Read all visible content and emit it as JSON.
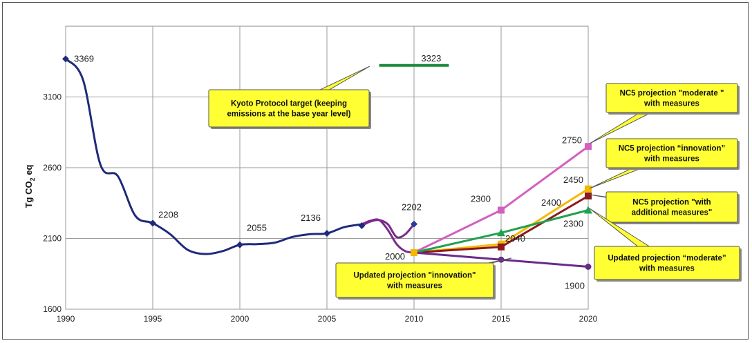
{
  "chart_data": {
    "type": "line",
    "title": "",
    "ylabel": "Tg CO₂ eq",
    "xlabel": "",
    "xlim": [
      1990,
      2020
    ],
    "ylim": [
      1600,
      3600
    ],
    "x_ticks": [
      1990,
      1995,
      2000,
      2005,
      2010,
      2015,
      2020
    ],
    "y_ticks": [
      1600,
      2100,
      2600,
      3100
    ],
    "grid": true,
    "historical": {
      "color": "#1f2a7a",
      "curve": [
        [
          1990,
          3369
        ],
        [
          1991,
          3220
        ],
        [
          1992,
          2620
        ],
        [
          1993,
          2540
        ],
        [
          1994,
          2260
        ],
        [
          1995,
          2208
        ],
        [
          1996,
          2130
        ],
        [
          1997,
          2020
        ],
        [
          1998,
          1990
        ],
        [
          1999,
          2010
        ],
        [
          2000,
          2055
        ],
        [
          2001,
          2060
        ],
        [
          2002,
          2070
        ],
        [
          2003,
          2110
        ],
        [
          2004,
          2130
        ],
        [
          2005,
          2136
        ],
        [
          2006,
          2180
        ],
        [
          2007,
          2200
        ]
      ],
      "markers": [
        [
          1990,
          3369
        ],
        [
          1995,
          2208
        ],
        [
          2000,
          2055
        ],
        [
          2005,
          2136
        ],
        [
          2007,
          2190
        ]
      ]
    },
    "historical_2": {
      "color": "#7a2a8a",
      "curve": [
        [
          2007,
          2190
        ],
        [
          2007.5,
          2220
        ],
        [
          2008,
          2230
        ],
        [
          2008.5,
          2200
        ],
        [
          2009,
          2110
        ],
        [
          2009.5,
          2130
        ],
        [
          2010,
          2202
        ]
      ],
      "markers": [
        [
          2010,
          2202
        ]
      ]
    },
    "base_line": {
      "color": "#7a2a8a",
      "curve": [
        [
          2007,
          2200
        ],
        [
          2007.5,
          2225
        ],
        [
          2008,
          2230
        ],
        [
          2008.5,
          2160
        ],
        [
          2009,
          2060
        ],
        [
          2009.5,
          2010
        ],
        [
          2010,
          2000
        ]
      ]
    },
    "series": [
      {
        "name": "NC5 projection \"moderate\" with measures",
        "color": "#d35fbf",
        "marker": "square",
        "x": [
          2010,
          2015,
          2020
        ],
        "y": [
          2000,
          2300,
          2750
        ]
      },
      {
        "name": "NC5 projection \"innovation\" with measures",
        "color": "#f5b800",
        "marker": "square",
        "x": [
          2010,
          2015,
          2020
        ],
        "y": [
          2000,
          2060,
          2450
        ]
      },
      {
        "name": "NC5 projection \"with additional measures\"",
        "color": "#8b1a1a",
        "marker": "square",
        "x": [
          2010,
          2015,
          2020
        ],
        "y": [
          2000,
          2040,
          2400
        ]
      },
      {
        "name": "Updated projection \"moderate\" with measures",
        "color": "#22a050",
        "marker": "triangle",
        "x": [
          2010,
          2015,
          2020
        ],
        "y": [
          2000,
          2140,
          2300
        ]
      },
      {
        "name": "Updated projection \"innovation\" with measures",
        "color": "#6a2a8a",
        "marker": "circle",
        "x": [
          2010,
          2015,
          2020
        ],
        "y": [
          2000,
          1950,
          1900
        ]
      }
    ],
    "kyoto": {
      "color": "#1e8a3a",
      "x": [
        2008,
        2012
      ],
      "y": 3323
    },
    "data_labels": [
      {
        "text": "3369",
        "x": 1990,
        "y": 3369,
        "dx": 12,
        "dy": 4
      },
      {
        "text": "2208",
        "x": 1995,
        "y": 2208,
        "dx": 8,
        "dy": -8
      },
      {
        "text": "2055",
        "x": 2000,
        "y": 2055,
        "dx": 10,
        "dy": -20
      },
      {
        "text": "2136",
        "x": 2005,
        "y": 2136,
        "dx": -38,
        "dy": -18
      },
      {
        "text": "2202",
        "x": 2010,
        "y": 2202,
        "dx": -18,
        "dy": -20
      },
      {
        "text": "3323",
        "x": 2012,
        "y": 3323,
        "dx": -40,
        "dy": -6
      },
      {
        "text": "2000",
        "x": 2010,
        "y": 2000,
        "dx": -42,
        "dy": 10
      },
      {
        "text": "2300",
        "x": 2015,
        "y": 2300,
        "dx": -44,
        "dy": -12
      },
      {
        "text": "2040",
        "x": 2015,
        "y": 2040,
        "dx": 6,
        "dy": -8
      },
      {
        "text": "2750",
        "x": 2020,
        "y": 2750,
        "dx": -38,
        "dy": -5
      },
      {
        "text": "2450",
        "x": 2020,
        "y": 2450,
        "dx": -36,
        "dy": -9
      },
      {
        "text": "2400",
        "x": 2020,
        "y": 2400,
        "dx": -68,
        "dy": 14
      },
      {
        "text": "2300",
        "x": 2020,
        "y": 2300,
        "dx": -36,
        "dy": 24
      },
      {
        "text": "1900",
        "x": 2020,
        "y": 1900,
        "dx": -34,
        "dy": 32
      }
    ],
    "annotations": [
      {
        "id": "kyoto",
        "lines": [
          "Kyoto Protocol  target (keeping",
          "emissions at the base year level)"
        ],
        "anchor": [
          2009,
          3323
        ]
      },
      {
        "id": "nc5-moderate",
        "lines": [
          "NC5 projection \"moderate \"",
          "with measures"
        ],
        "anchor": [
          2020,
          2750
        ]
      },
      {
        "id": "nc5-innovation",
        "lines": [
          "NC5 projection “innovation”",
          "with measures"
        ],
        "anchor": [
          2020,
          2450
        ]
      },
      {
        "id": "nc5-additional",
        "lines": [
          "NC5 projection \"with",
          "additional measures\""
        ],
        "anchor": [
          2020,
          2400
        ]
      },
      {
        "id": "upd-moderate",
        "lines": [
          "Updated projection “moderate”",
          "with measures"
        ],
        "anchor": [
          2020,
          2300
        ]
      },
      {
        "id": "upd-innovation",
        "lines": [
          "Updated projection \"innovation\"",
          "with measures"
        ],
        "anchor": [
          2016,
          1990
        ]
      }
    ]
  }
}
